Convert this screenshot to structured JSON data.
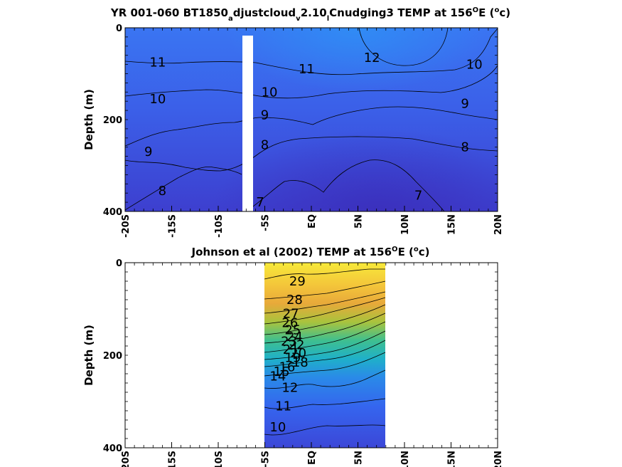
{
  "chart_data": [
    {
      "type": "heatmap",
      "title_parts": [
        "YR 001-060 BT1850",
        "a",
        "djustcloud",
        "v",
        "2.10",
        "l",
        "Cnudging3 TEMP at 156",
        "O",
        "E (",
        "o",
        "c)"
      ],
      "ylabel": "Depth (m)",
      "xlim": [
        -20,
        20
      ],
      "ylim": [
        0,
        400
      ],
      "xticks": [
        -20,
        -15,
        -10,
        -5,
        0,
        5,
        10,
        15,
        20
      ],
      "xtick_labels": [
        "-20S",
        "-15S",
        "-10S",
        "-5S",
        "EQ",
        "5N",
        "10N",
        "15N",
        "20N"
      ],
      "yticks": [
        0,
        200,
        400
      ],
      "ytick_labels": [
        "0",
        "200",
        "400"
      ],
      "missing_band_lat": [
        -7.8,
        -6.6
      ],
      "contour_labels": [
        {
          "text": "11",
          "lat": -16.5,
          "depth": 75
        },
        {
          "text": "10",
          "lat": -16.5,
          "depth": 155
        },
        {
          "text": "9",
          "lat": -17.5,
          "depth": 270
        },
        {
          "text": "8",
          "lat": -16.0,
          "depth": 355
        },
        {
          "text": "7",
          "lat": -5.5,
          "depth": 380
        },
        {
          "text": "10",
          "lat": -4.5,
          "depth": 140
        },
        {
          "text": "11",
          "lat": -0.5,
          "depth": 90
        },
        {
          "text": "9",
          "lat": -5.0,
          "depth": 190
        },
        {
          "text": "8",
          "lat": -5.0,
          "depth": 255
        },
        {
          "text": "12",
          "lat": 6.5,
          "depth": 65
        },
        {
          "text": "10",
          "lat": 17.5,
          "depth": 80
        },
        {
          "text": "9",
          "lat": 16.5,
          "depth": 165
        },
        {
          "text": "8",
          "lat": 16.5,
          "depth": 260
        },
        {
          "text": "7",
          "lat": 11.5,
          "depth": 365
        }
      ]
    },
    {
      "type": "heatmap",
      "title_parts": [
        "Johnson et al (2002) TEMP at 156",
        "O",
        "E (",
        "o",
        "c)"
      ],
      "ylabel": "Depth (m)",
      "xlim": [
        -20,
        20
      ],
      "ylim": [
        0,
        400
      ],
      "xticks": [
        -20,
        -15,
        -10,
        -5,
        0,
        5,
        10,
        15,
        20
      ],
      "xtick_labels": [
        "-20S",
        "-15S",
        "-10S",
        "-5S",
        "EQ",
        "5N",
        "10N",
        "15N",
        "20N"
      ],
      "yticks": [
        0,
        200,
        400
      ],
      "ytick_labels": [
        "0",
        "200",
        "400"
      ],
      "data_lat_range": [
        -5,
        8
      ],
      "contour_labels": [
        {
          "text": "29",
          "lat": -1.5,
          "depth": 40
        },
        {
          "text": "28",
          "lat": -1.8,
          "depth": 80
        },
        {
          "text": "27",
          "lat": -2.2,
          "depth": 110
        },
        {
          "text": "26",
          "lat": -2.3,
          "depth": 130
        },
        {
          "text": "25",
          "lat": -2.0,
          "depth": 145
        },
        {
          "text": "24",
          "lat": -1.8,
          "depth": 160
        },
        {
          "text": "23",
          "lat": -2.4,
          "depth": 170
        },
        {
          "text": "22",
          "lat": -1.6,
          "depth": 178
        },
        {
          "text": "21",
          "lat": -2.2,
          "depth": 188
        },
        {
          "text": "20",
          "lat": -1.4,
          "depth": 195
        },
        {
          "text": "19",
          "lat": -2.0,
          "depth": 205
        },
        {
          "text": "18",
          "lat": -1.2,
          "depth": 215
        },
        {
          "text": "16",
          "lat": -2.6,
          "depth": 225
        },
        {
          "text": "15",
          "lat": -3.2,
          "depth": 235
        },
        {
          "text": "14",
          "lat": -3.6,
          "depth": 245
        },
        {
          "text": "12",
          "lat": -2.3,
          "depth": 270
        },
        {
          "text": "11",
          "lat": -3.0,
          "depth": 310
        },
        {
          "text": "10",
          "lat": -3.6,
          "depth": 355
        }
      ]
    }
  ]
}
